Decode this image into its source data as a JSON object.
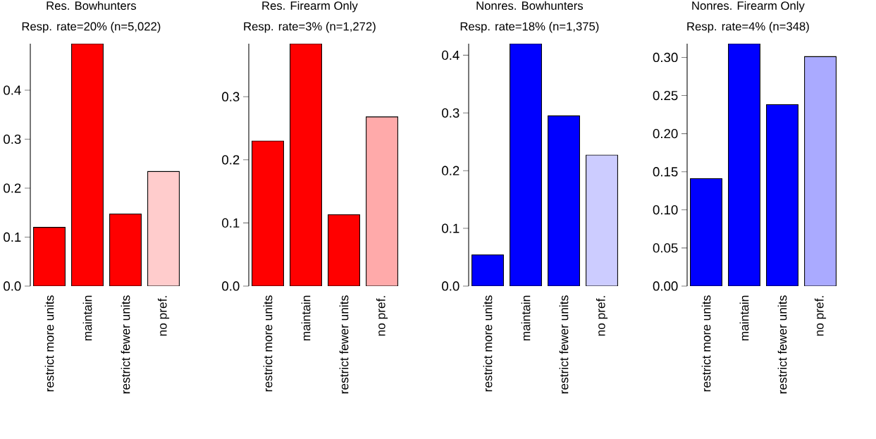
{
  "chart_data": [
    {
      "type": "bar",
      "title": "Res. Bowhunters",
      "subtitle": "Resp. rate=20% (n=5,022)",
      "categories": [
        "restrict more units",
        "maintain",
        "restrict fewer units",
        "no pref."
      ],
      "values": [
        0.12,
        0.495,
        0.147,
        0.234
      ],
      "colors": [
        "#ff0000",
        "#ff0000",
        "#ff0000",
        "#ffcccc"
      ],
      "ylim": [
        0,
        0.495
      ],
      "yticks": [
        {
          "value": 0,
          "label": "0.0"
        },
        {
          "value": 0.1,
          "label": "0.1"
        },
        {
          "value": 0.2,
          "label": "0.2"
        },
        {
          "value": 0.3,
          "label": "0.3"
        },
        {
          "value": 0.4,
          "label": "0.4"
        }
      ]
    },
    {
      "type": "bar",
      "title": "Res. Firearm Only",
      "subtitle": "Resp. rate=3% (n=1,272)",
      "categories": [
        "restrict more units",
        "maintain",
        "restrict fewer units",
        "no pref."
      ],
      "values": [
        0.23,
        0.384,
        0.113,
        0.268
      ],
      "colors": [
        "#ff0000",
        "#ff0000",
        "#ff0000",
        "#ffaaaa"
      ],
      "ylim": [
        0,
        0.384
      ],
      "yticks": [
        {
          "value": 0,
          "label": "0.0"
        },
        {
          "value": 0.1,
          "label": "0.1"
        },
        {
          "value": 0.2,
          "label": "0.2"
        },
        {
          "value": 0.3,
          "label": "0.3"
        }
      ]
    },
    {
      "type": "bar",
      "title": "Nonres. Bowhunters",
      "subtitle": "Resp. rate=18% (n=1,375)",
      "categories": [
        "restrict more units",
        "maintain",
        "restrict fewer units",
        "no pref."
      ],
      "values": [
        0.054,
        0.42,
        0.295,
        0.227
      ],
      "colors": [
        "#0000ff",
        "#0000ff",
        "#0000ff",
        "#ccccff"
      ],
      "ylim": [
        0,
        0.42
      ],
      "yticks": [
        {
          "value": 0,
          "label": "0.0"
        },
        {
          "value": 0.1,
          "label": "0.1"
        },
        {
          "value": 0.2,
          "label": "0.2"
        },
        {
          "value": 0.3,
          "label": "0.3"
        },
        {
          "value": 0.4,
          "label": "0.4"
        }
      ]
    },
    {
      "type": "bar",
      "title": "Nonres. Firearm Only",
      "subtitle": "Resp. rate=4% (n=348)",
      "categories": [
        "restrict more units",
        "maintain",
        "restrict fewer units",
        "no pref."
      ],
      "values": [
        0.141,
        0.318,
        0.238,
        0.301
      ],
      "colors": [
        "#0000ff",
        "#0000ff",
        "#0000ff",
        "#aaaaff"
      ],
      "ylim": [
        0,
        0.318
      ],
      "yticks": [
        {
          "value": 0,
          "label": "0.00"
        },
        {
          "value": 0.05,
          "label": "0.05"
        },
        {
          "value": 0.1,
          "label": "0.10"
        },
        {
          "value": 0.15,
          "label": "0.15"
        },
        {
          "value": 0.2,
          "label": "0.20"
        },
        {
          "value": 0.25,
          "label": "0.25"
        },
        {
          "value": 0.3,
          "label": "0.30"
        }
      ]
    }
  ]
}
